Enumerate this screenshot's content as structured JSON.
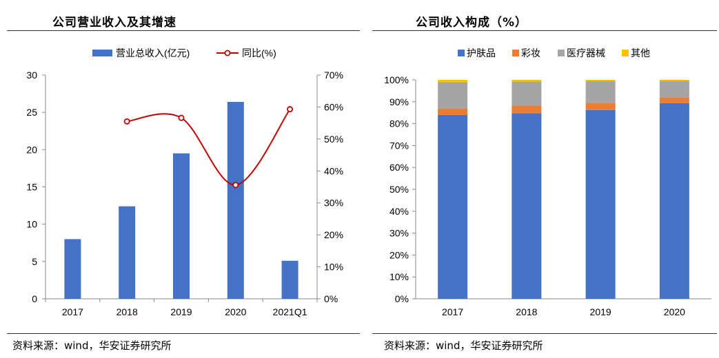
{
  "panels": {
    "left_title": "公司营业收入及其增速",
    "right_title": "公司收入构成（%）",
    "left_source": "资料来源：wind，华安证券研究所",
    "right_source": "资料来源：wind，华安证券研究所"
  },
  "colors": {
    "revenue": "#4472C4",
    "yoy_line": "#C00000",
    "skincare": "#4472C4",
    "cosmetics": "#ED7D31",
    "medical": "#A5A5A5",
    "other": "#FFC000"
  },
  "chart_data": [
    {
      "type": "bar",
      "title": "公司营业收入及其增速",
      "categories": [
        "2017",
        "2018",
        "2019",
        "2020",
        "2021Q1"
      ],
      "series": [
        {
          "name": "营业总收入(亿元)",
          "type": "bar",
          "axis": "left",
          "values": [
            8.0,
            12.4,
            19.5,
            26.4,
            5.1
          ]
        },
        {
          "name": "同比(%)",
          "type": "line",
          "axis": "right",
          "values": [
            null,
            55.5,
            56.6,
            35.6,
            59.3
          ]
        }
      ],
      "y_left": {
        "min": 0,
        "max": 30,
        "ticks": [
          "0",
          "5",
          "10",
          "15",
          "20",
          "25",
          "30"
        ]
      },
      "y_right": {
        "min": 0,
        "max": 70,
        "ticks": [
          "0%",
          "10%",
          "20%",
          "30%",
          "40%",
          "50%",
          "60%",
          "70%"
        ]
      },
      "legend_position": "top",
      "grid": false
    },
    {
      "type": "bar",
      "stacked": true,
      "title": "公司收入构成（%）",
      "categories": [
        "2017",
        "2018",
        "2019",
        "2020"
      ],
      "series": [
        {
          "name": "护肤品",
          "values": [
            84.0,
            84.8,
            86.2,
            89.4
          ]
        },
        {
          "name": "彩妆",
          "values": [
            2.9,
            3.4,
            3.3,
            2.6
          ]
        },
        {
          "name": "医疗器械",
          "values": [
            12.0,
            11.0,
            10.0,
            7.6
          ]
        },
        {
          "name": "其他",
          "values": [
            1.1,
            0.8,
            0.5,
            0.4
          ]
        }
      ],
      "y": {
        "min": 0,
        "max": 100,
        "ticks": [
          "0%",
          "10%",
          "20%",
          "30%",
          "40%",
          "50%",
          "60%",
          "70%",
          "80%",
          "90%",
          "100%"
        ]
      },
      "legend_position": "top",
      "grid": false
    }
  ]
}
